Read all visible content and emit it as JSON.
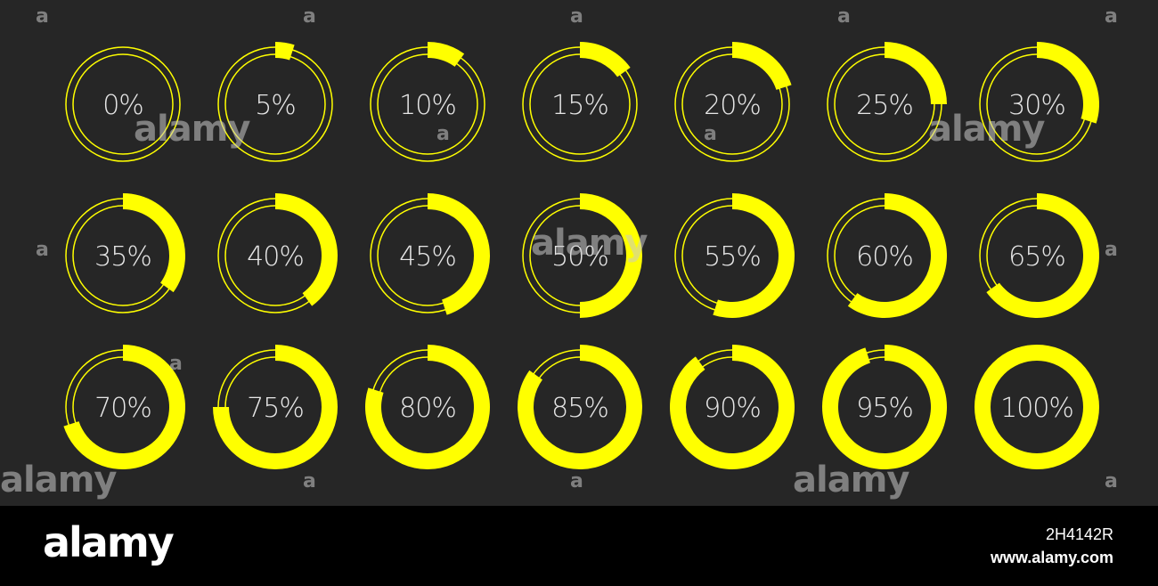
{
  "colors": {
    "background": "#262626",
    "accent": "#ffff00",
    "label": "#e6e6e6",
    "footer": "#000000"
  },
  "gauges": [
    {
      "label": "0%",
      "value": 0
    },
    {
      "label": "5%",
      "value": 5
    },
    {
      "label": "10%",
      "value": 10
    },
    {
      "label": "15%",
      "value": 15
    },
    {
      "label": "20%",
      "value": 20
    },
    {
      "label": "25%",
      "value": 25
    },
    {
      "label": "30%",
      "value": 30
    },
    {
      "label": "35%",
      "value": 35
    },
    {
      "label": "40%",
      "value": 40
    },
    {
      "label": "45%",
      "value": 45
    },
    {
      "label": "50%",
      "value": 50
    },
    {
      "label": "55%",
      "value": 55
    },
    {
      "label": "60%",
      "value": 60
    },
    {
      "label": "65%",
      "value": 65
    },
    {
      "label": "70%",
      "value": 70
    },
    {
      "label": "75%",
      "value": 75
    },
    {
      "label": "80%",
      "value": 80
    },
    {
      "label": "85%",
      "value": 85
    },
    {
      "label": "90%",
      "value": 90
    },
    {
      "label": "95%",
      "value": 95
    },
    {
      "label": "100%",
      "value": 100
    }
  ],
  "watermark": {
    "text": "alamy",
    "small": "a"
  },
  "footer": {
    "logo": "alamy",
    "image_id": "2H4142R",
    "url": "www.alamy.com"
  }
}
